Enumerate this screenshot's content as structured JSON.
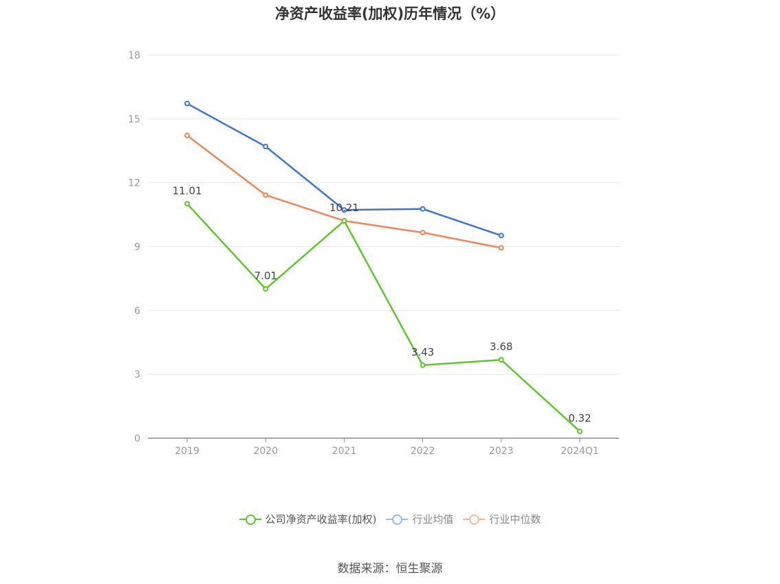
{
  "chart_data": {
    "type": "line",
    "title": "净资产收益率(加权)历年情况（%）",
    "categories": [
      "2019",
      "2020",
      "2021",
      "2022",
      "2023",
      "2024Q1"
    ],
    "ylim": [
      0,
      18
    ],
    "yticks": [
      0,
      3,
      6,
      9,
      12,
      15,
      18
    ],
    "grid": true,
    "legend_position": "bottom",
    "series": [
      {
        "name": "公司净资产收益率(加权)",
        "color": "#5cc825",
        "values": [
          11.01,
          7.01,
          10.21,
          3.43,
          3.68,
          0.32
        ],
        "labels": [
          "11.01",
          "7.01",
          "10.21",
          "3.43",
          "3.68",
          "0.32"
        ]
      },
      {
        "name": "行业均值",
        "color": "#3b72dd",
        "values": [
          15.72,
          13.7,
          10.72,
          10.77,
          9.52,
          null
        ]
      },
      {
        "name": "行业中位数",
        "color": "#f08653",
        "values": [
          14.22,
          11.42,
          10.21,
          9.66,
          8.94,
          null
        ]
      }
    ],
    "source": "数据来源：恒生聚源"
  }
}
